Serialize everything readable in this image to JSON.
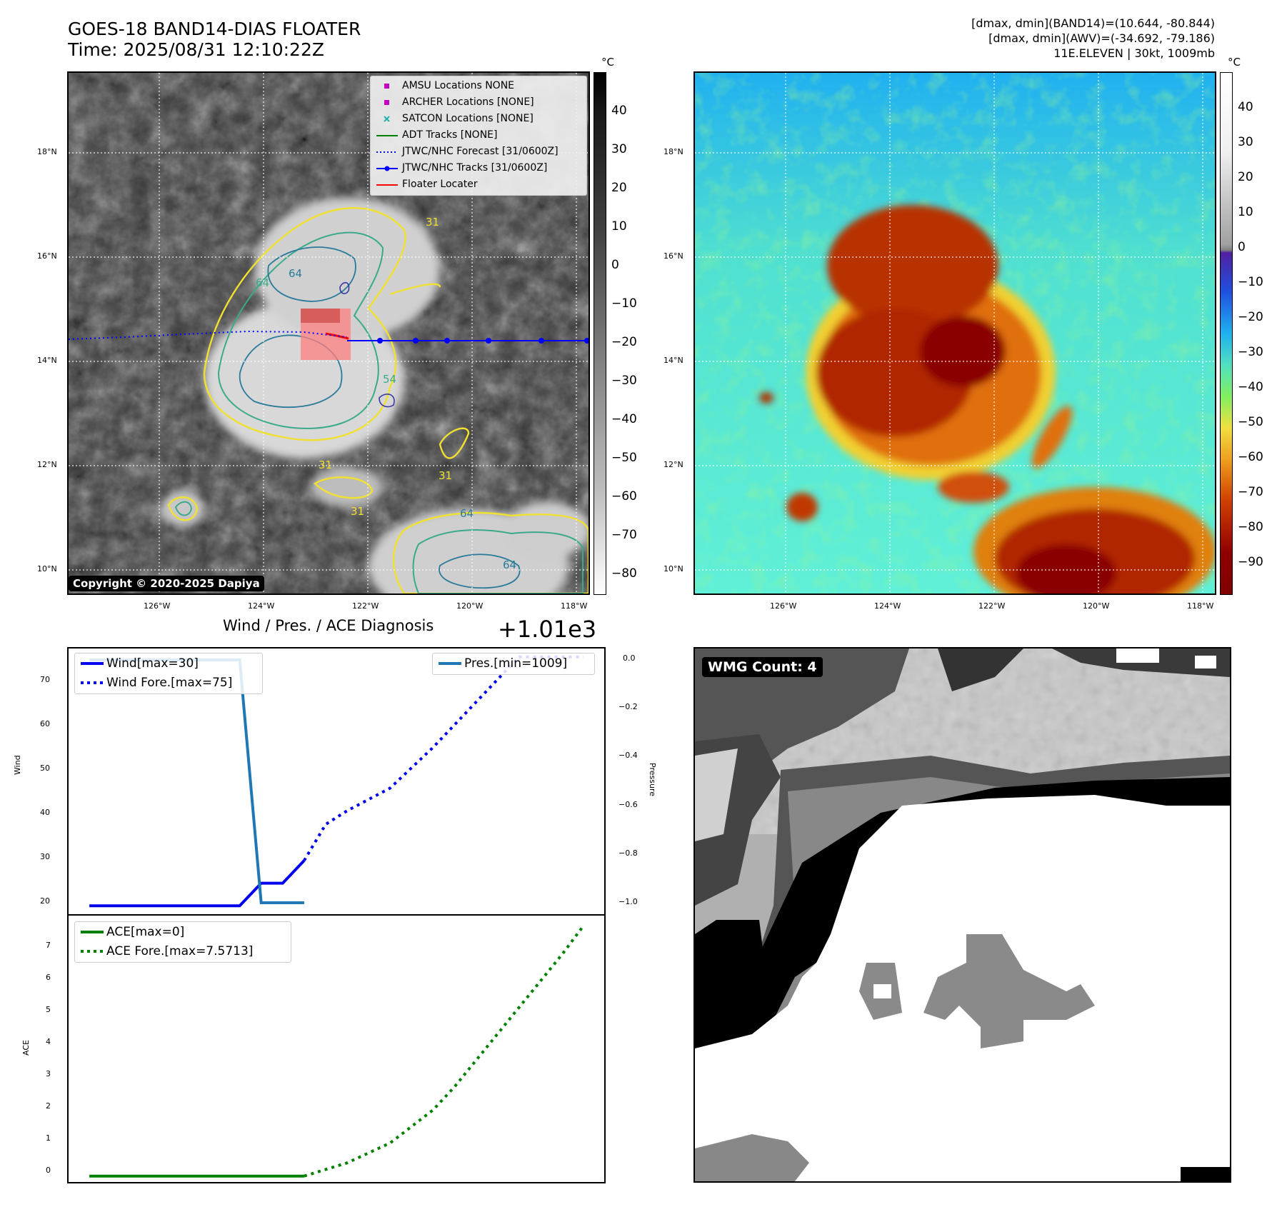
{
  "header": {
    "title": "GOES-18 BAND14-DIAS FLOATER",
    "time": "Time: 2025/08/31 12:10:22Z",
    "stats_line1": "[dmax, dmin](BAND14)=(10.644, -80.844)",
    "stats_line2": "[dmax, dmin](AWV)=(-34.692, -79.186)",
    "stats_line3": "11E.ELEVEN | 30kt, 1009mb"
  },
  "map_left": {
    "lat_labels": [
      "18°N",
      "16°N",
      "14°N",
      "12°N",
      "10°N"
    ],
    "lon_labels": [
      "126°W",
      "124°W",
      "122°W",
      "120°W",
      "118°W"
    ],
    "copyright": "Copyright © 2020-2025 Dapiya",
    "contour_labels": [
      "64",
      "64",
      "31",
      "64",
      "31",
      "31",
      "64",
      "54",
      "31"
    ],
    "legend": [
      {
        "label": "AMSU Locations NONE",
        "symbol": "square",
        "color": "#c000c0"
      },
      {
        "label": "ARCHER Locations [NONE]",
        "symbol": "square",
        "color": "#c000c0"
      },
      {
        "label": "SATCON Locations [NONE]",
        "symbol": "x",
        "color": "#20b0b0"
      },
      {
        "label": "ADT Tracks [NONE]",
        "symbol": "line",
        "color": "#008000"
      },
      {
        "label": "JTWC/NHC Forecast [31/0600Z]",
        "symbol": "dotted",
        "color": "#0000ff"
      },
      {
        "label": "JTWC/NHC Tracks [31/0600Z]",
        "symbol": "line-dot",
        "color": "#0000ff"
      },
      {
        "label": "Floater Locater",
        "symbol": "line",
        "color": "#ff0000"
      }
    ]
  },
  "map_right": {
    "lat_labels": [
      "18°N",
      "16°N",
      "14°N",
      "12°N",
      "10°N"
    ],
    "lon_labels": [
      "126°W",
      "124°W",
      "122°W",
      "120°W",
      "118°W"
    ]
  },
  "colorbar_left": {
    "unit": "°C",
    "labels": [
      "40",
      "30",
      "20",
      "10",
      "0",
      "−10",
      "−20",
      "−30",
      "−40",
      "−50",
      "−60",
      "−70",
      "−80"
    ]
  },
  "colorbar_right": {
    "unit": "°C",
    "labels": [
      "40",
      "30",
      "20",
      "10",
      "0",
      "−10",
      "−20",
      "−30",
      "−40",
      "−50",
      "−60",
      "−70",
      "−80",
      "−90"
    ]
  },
  "diagnosis": {
    "title": "Wind / Pres. / ACE Diagnosis",
    "offset_label": "+1.01e3",
    "wind_ylabel": "Wind",
    "pressure_ylabel": "Pressure",
    "ace_ylabel": "ACE",
    "wind_legend": [
      "Wind[max=30]",
      "Wind Fore.[max=75]"
    ],
    "pres_legend": [
      "Pres.[min=1009]"
    ],
    "ace_legend": [
      "ACE[max=0]",
      "ACE Fore.[max=7.5713]"
    ],
    "wind_ticks": [
      "70",
      "60",
      "50",
      "40",
      "30",
      "20"
    ],
    "pres_ticks": [
      "0.0",
      "−0.2",
      "−0.4",
      "−0.6",
      "−0.8",
      "−1.0"
    ],
    "ace_ticks": [
      "7",
      "6",
      "5",
      "4",
      "3",
      "2",
      "1",
      "0"
    ]
  },
  "wmg": {
    "label": "WMG Count: 4"
  },
  "chart_data": [
    {
      "type": "line",
      "title": "Wind / Pres. / ACE Diagnosis",
      "ylabel": "Wind",
      "ylim": [
        18,
        77
      ],
      "xlim": [
        -1,
        24
      ],
      "series": [
        {
          "name": "Wind[max=30]",
          "color": "#0000ee",
          "style": "solid",
          "x": [
            0,
            1,
            2,
            3,
            4,
            5,
            6,
            7,
            8,
            9,
            10
          ],
          "values": [
            20,
            20,
            20,
            20,
            20,
            20,
            20,
            20,
            25,
            25,
            30
          ]
        },
        {
          "name": "Wind Fore.[max=75]",
          "color": "#0000ee",
          "style": "dotted",
          "x": [
            10,
            11,
            12,
            14,
            16,
            18,
            20,
            22,
            23
          ],
          "values": [
            30,
            38,
            41,
            46,
            55,
            65,
            75,
            75,
            75
          ]
        },
        {
          "name": "Pres.[min=1009]",
          "color": "#1f77b4",
          "style": "solid",
          "axis": "right",
          "x": [
            0,
            1,
            2,
            3,
            4,
            5,
            6,
            7,
            8,
            9,
            10
          ],
          "values": [
            1010,
            1010,
            1010,
            1010,
            1010,
            1010,
            1010,
            1010,
            1009,
            1009,
            1009
          ]
        }
      ],
      "pressure_ylim": [
        1008.95,
        1010.05
      ]
    },
    {
      "type": "line",
      "ylabel": "ACE",
      "ylim": [
        -0.2,
        7.9
      ],
      "xlim": [
        -1,
        24
      ],
      "series": [
        {
          "name": "ACE[max=0]",
          "color": "#008000",
          "style": "solid",
          "x": [
            0,
            10
          ],
          "values": [
            0,
            0
          ]
        },
        {
          "name": "ACE Fore.[max=7.5713]",
          "color": "#008000",
          "style": "dotted",
          "x": [
            10,
            12,
            14,
            16,
            17,
            18,
            20,
            22,
            23
          ],
          "values": [
            0,
            0.4,
            1.0,
            2.0,
            2.7,
            3.5,
            5.1,
            6.7,
            7.57
          ]
        }
      ]
    }
  ]
}
